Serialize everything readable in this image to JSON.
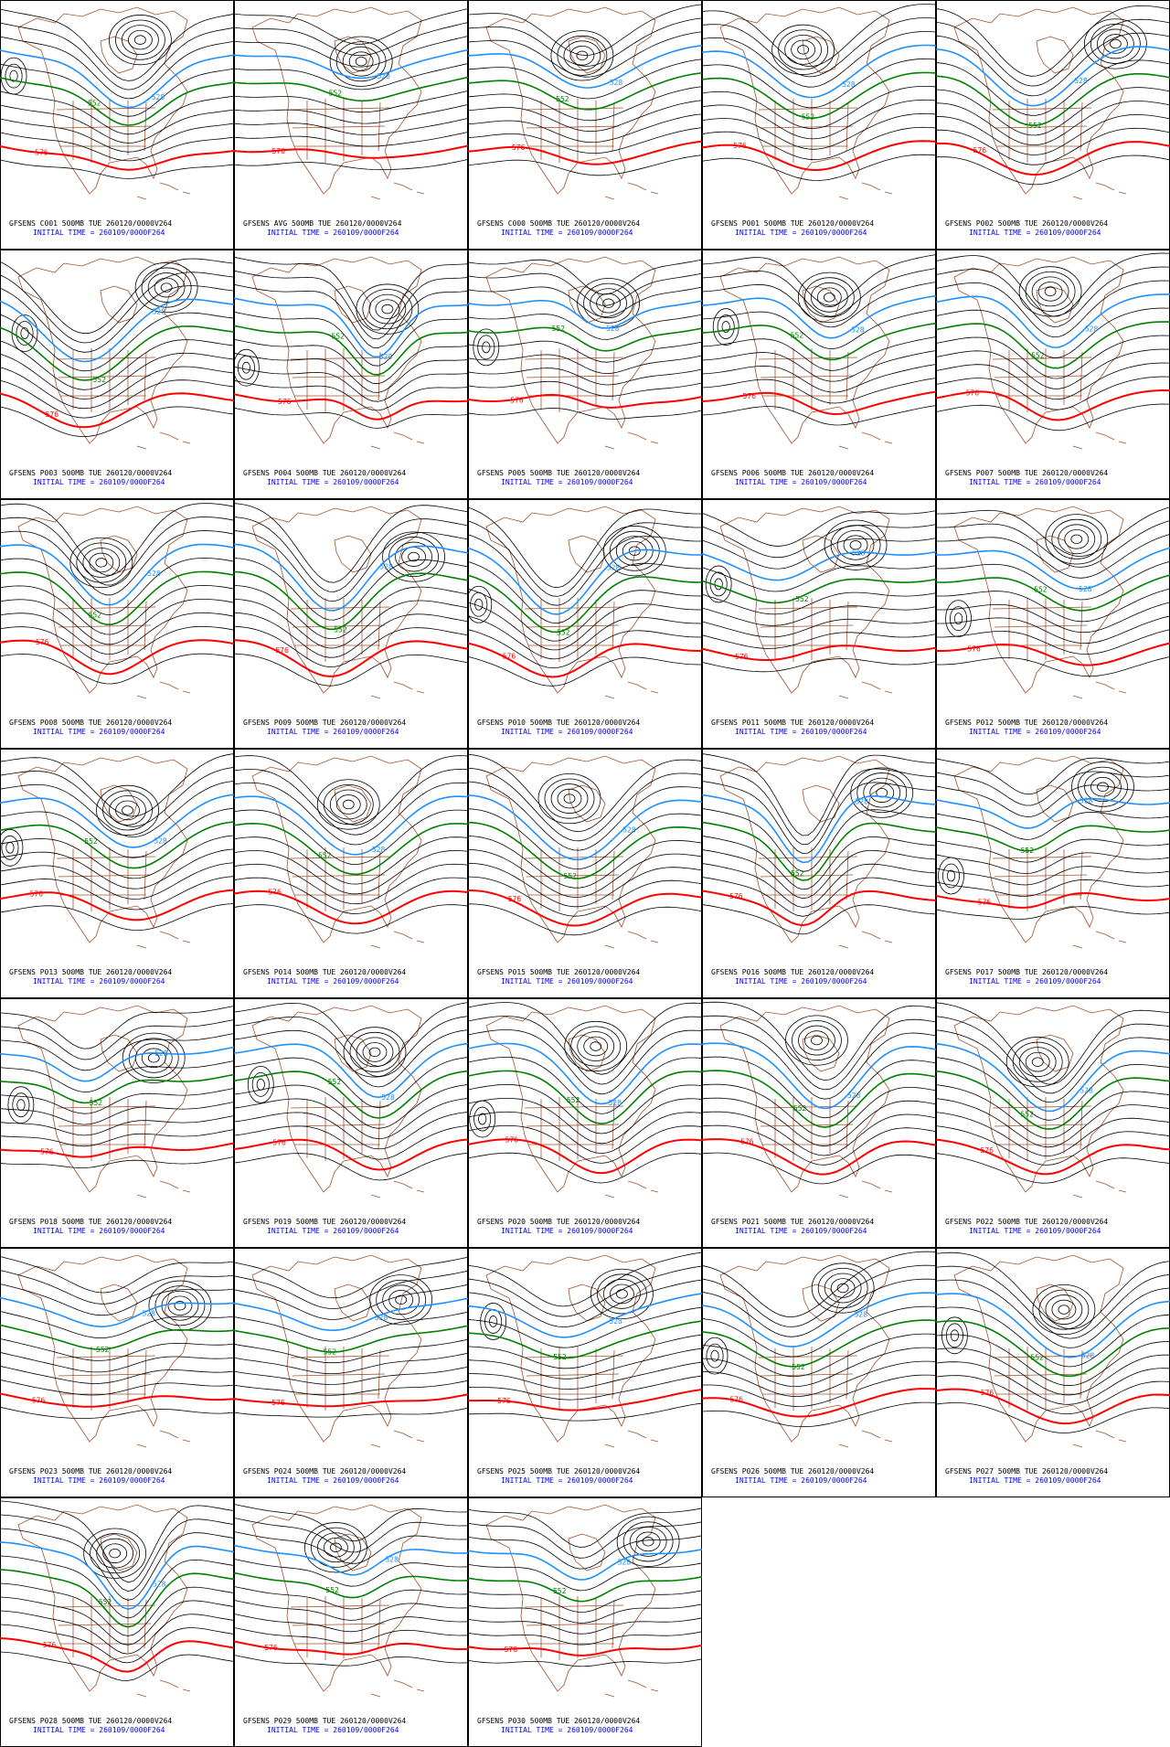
{
  "panels": [
    {
      "title": "GFSENS C001 500MB TUE 260120/0000V264",
      "init": "INITIAL TIME = 260109/0000F264",
      "contour_labels": [
        576,
        552,
        528
      ]
    },
    {
      "title": "GFSENS AVG 500MB TUE 260120/0000V264",
      "init": "INITIAL TIME = 260109/0000F264",
      "contour_labels": [
        576,
        552,
        528
      ]
    },
    {
      "title": "GFSENS C000 500MB TUE 260120/0000V264",
      "init": "INITIAL TIME = 260109/0000F264",
      "contour_labels": [
        576,
        552,
        528
      ]
    },
    {
      "title": "GFSENS P001 500MB TUE 260120/0000V264",
      "init": "INITIAL TIME = 260109/0000F264",
      "contour_labels": [
        576,
        552,
        528
      ]
    },
    {
      "title": "GFSENS P002 500MB TUE 260120/0000V264",
      "init": "INITIAL TIME = 260109/0000F264",
      "contour_labels": [
        576,
        552,
        528
      ]
    },
    {
      "title": "GFSENS P003 500MB TUE 260120/0000V264",
      "init": "INITIAL TIME = 260109/0000F264",
      "contour_labels": [
        576,
        552,
        528
      ]
    },
    {
      "title": "GFSENS P004 500MB TUE 260120/0000V264",
      "init": "INITIAL TIME = 260109/0000F264",
      "contour_labels": [
        576,
        552,
        528
      ]
    },
    {
      "title": "GFSENS P005 500MB TUE 260120/0000V264",
      "init": "INITIAL TIME = 260109/0000F264",
      "contour_labels": [
        576,
        552,
        528
      ]
    },
    {
      "title": "GFSENS P006 500MB TUE 260120/0000V264",
      "init": "INITIAL TIME = 260109/0000F264",
      "contour_labels": [
        576,
        552,
        528
      ]
    },
    {
      "title": "GFSENS P007 500MB TUE 260120/0000V264",
      "init": "INITIAL TIME = 260109/0000F264",
      "contour_labels": [
        576,
        552,
        528
      ]
    },
    {
      "title": "GFSENS P008 500MB TUE 260120/0000V264",
      "init": "INITIAL TIME = 260109/0000F264",
      "contour_labels": [
        576,
        552,
        528
      ]
    },
    {
      "title": "GFSENS P009 500MB TUE 260120/0000V264",
      "init": "INITIAL TIME = 260109/0000F264",
      "contour_labels": [
        576,
        552,
        528
      ]
    },
    {
      "title": "GFSENS P010 500MB TUE 260120/0000V264",
      "init": "INITIAL TIME = 260109/0000F264",
      "contour_labels": [
        576,
        552,
        528
      ]
    },
    {
      "title": "GFSENS P011 500MB TUE 260120/0000V264",
      "init": "INITIAL TIME = 260109/0000F264",
      "contour_labels": [
        576,
        552,
        528
      ]
    },
    {
      "title": "GFSENS P012 500MB TUE 260120/0000V264",
      "init": "INITIAL TIME = 260109/0000F264",
      "contour_labels": [
        576,
        552,
        528
      ]
    },
    {
      "title": "GFSENS P013 500MB TUE 260120/0000V264",
      "init": "INITIAL TIME = 260109/0000F264",
      "contour_labels": [
        576,
        552,
        528
      ]
    },
    {
      "title": "GFSENS P014 500MB TUE 260120/0000V264",
      "init": "INITIAL TIME = 260109/0000F264",
      "contour_labels": [
        576,
        552,
        528
      ]
    },
    {
      "title": "GFSENS P015 500MB TUE 260120/0000V264",
      "init": "INITIAL TIME = 260109/0000F264",
      "contour_labels": [
        576,
        552,
        528
      ]
    },
    {
      "title": "GFSENS P016 500MB TUE 260120/0000V264",
      "init": "INITIAL TIME = 260109/0000F264",
      "contour_labels": [
        576,
        552,
        528
      ]
    },
    {
      "title": "GFSENS P017 500MB TUE 260120/0000V264",
      "init": "INITIAL TIME = 260109/0000F264",
      "contour_labels": [
        576,
        552,
        528
      ]
    },
    {
      "title": "GFSENS P018 500MB TUE 260120/0000V264",
      "init": "INITIAL TIME = 260109/0000F264",
      "contour_labels": [
        576,
        552,
        528
      ]
    },
    {
      "title": "GFSENS P019 500MB TUE 260120/0000V264",
      "init": "INITIAL TIME = 260109/0000F264",
      "contour_labels": [
        576,
        552,
        528
      ]
    },
    {
      "title": "GFSENS P020 500MB TUE 260120/0000V264",
      "init": "INITIAL TIME = 260109/0000F264",
      "contour_labels": [
        576,
        552,
        528
      ]
    },
    {
      "title": "GFSENS P021 500MB TUE 260120/0000V264",
      "init": "INITIAL TIME = 260109/0000F264",
      "contour_labels": [
        576,
        552,
        528
      ]
    },
    {
      "title": "GFSENS P022 500MB TUE 260120/0000V264",
      "init": "INITIAL TIME = 260109/0000F264",
      "contour_labels": [
        576,
        552,
        528
      ]
    },
    {
      "title": "GFSENS P023 500MB TUE 260120/0000V264",
      "init": "INITIAL TIME = 260109/0000F264",
      "contour_labels": [
        576,
        552,
        528
      ]
    },
    {
      "title": "GFSENS P024 500MB TUE 260120/0000V264",
      "init": "INITIAL TIME = 260109/0000F264",
      "contour_labels": [
        576,
        552,
        528
      ]
    },
    {
      "title": "GFSENS P025 500MB TUE 260120/0000V264",
      "init": "INITIAL TIME = 260109/0000F264",
      "contour_labels": [
        576,
        552,
        528
      ]
    },
    {
      "title": "GFSENS P026 500MB TUE 260120/0000V264",
      "init": "INITIAL TIME = 260109/0000F264",
      "contour_labels": [
        576,
        552,
        528
      ]
    },
    {
      "title": "GFSENS P027 500MB TUE 260120/0000V264",
      "init": "INITIAL TIME = 260109/0000F264",
      "contour_labels": [
        576,
        552,
        528
      ]
    },
    {
      "title": "GFSENS P028 500MB TUE 260120/0000V264",
      "init": "INITIAL TIME = 260109/0000F264",
      "contour_labels": [
        576,
        552,
        528
      ]
    },
    {
      "title": "GFSENS P029 500MB TUE 260120/0000V264",
      "init": "INITIAL TIME = 260109/0000F264",
      "contour_labels": [
        576,
        552,
        528
      ]
    },
    {
      "title": "GFSENS P030 500MB TUE 260120/0000V264",
      "init": "INITIAL TIME = 260109/0000F264",
      "contour_labels": [
        576,
        552,
        528
      ]
    }
  ]
}
